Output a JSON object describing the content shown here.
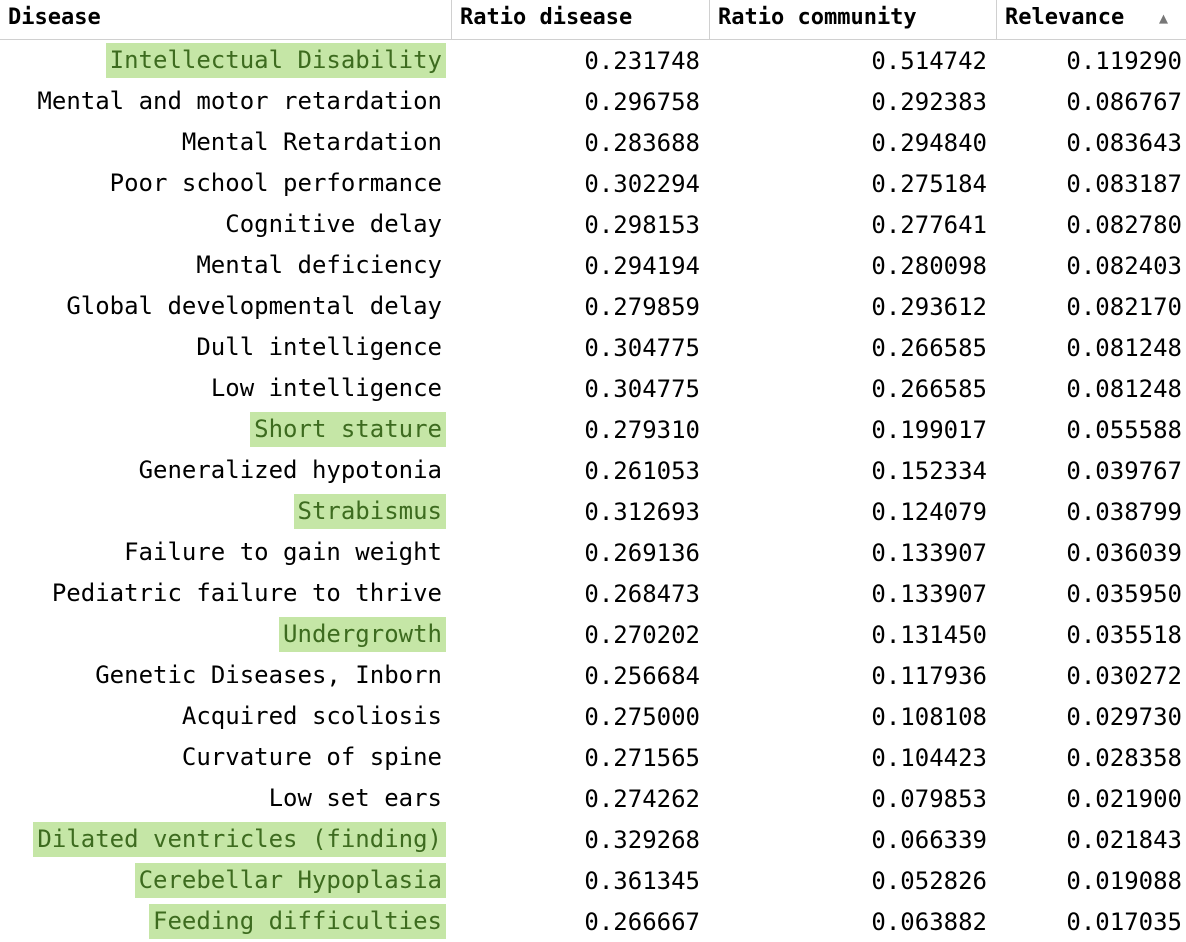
{
  "table": {
    "columns": [
      {
        "key": "disease",
        "label": "Disease",
        "sorted": false
      },
      {
        "key": "ratio_disease",
        "label": "Ratio disease",
        "sorted": false
      },
      {
        "key": "ratio_community",
        "label": "Ratio community",
        "sorted": false
      },
      {
        "key": "relevance",
        "label": "Relevance",
        "sorted": true,
        "sort_icon": "sort-ascending-icon"
      }
    ],
    "highlight_color": "#c5e6a6",
    "highlight_text_color": "#3d6b1f",
    "rows": [
      {
        "disease": "Intellectual Disability",
        "ratio_disease": "0.231748",
        "ratio_community": "0.514742",
        "relevance": "0.119290",
        "highlighted": true
      },
      {
        "disease": "Mental and motor retardation",
        "ratio_disease": "0.296758",
        "ratio_community": "0.292383",
        "relevance": "0.086767",
        "highlighted": false
      },
      {
        "disease": "Mental Retardation",
        "ratio_disease": "0.283688",
        "ratio_community": "0.294840",
        "relevance": "0.083643",
        "highlighted": false
      },
      {
        "disease": "Poor school performance",
        "ratio_disease": "0.302294",
        "ratio_community": "0.275184",
        "relevance": "0.083187",
        "highlighted": false
      },
      {
        "disease": "Cognitive delay",
        "ratio_disease": "0.298153",
        "ratio_community": "0.277641",
        "relevance": "0.082780",
        "highlighted": false
      },
      {
        "disease": "Mental deficiency",
        "ratio_disease": "0.294194",
        "ratio_community": "0.280098",
        "relevance": "0.082403",
        "highlighted": false
      },
      {
        "disease": "Global developmental delay",
        "ratio_disease": "0.279859",
        "ratio_community": "0.293612",
        "relevance": "0.082170",
        "highlighted": false
      },
      {
        "disease": "Dull intelligence",
        "ratio_disease": "0.304775",
        "ratio_community": "0.266585",
        "relevance": "0.081248",
        "highlighted": false
      },
      {
        "disease": "Low intelligence",
        "ratio_disease": "0.304775",
        "ratio_community": "0.266585",
        "relevance": "0.081248",
        "highlighted": false
      },
      {
        "disease": "Short stature",
        "ratio_disease": "0.279310",
        "ratio_community": "0.199017",
        "relevance": "0.055588",
        "highlighted": true
      },
      {
        "disease": "Generalized hypotonia",
        "ratio_disease": "0.261053",
        "ratio_community": "0.152334",
        "relevance": "0.039767",
        "highlighted": false
      },
      {
        "disease": "Strabismus",
        "ratio_disease": "0.312693",
        "ratio_community": "0.124079",
        "relevance": "0.038799",
        "highlighted": true
      },
      {
        "disease": "Failure to gain weight",
        "ratio_disease": "0.269136",
        "ratio_community": "0.133907",
        "relevance": "0.036039",
        "highlighted": false
      },
      {
        "disease": "Pediatric failure to thrive",
        "ratio_disease": "0.268473",
        "ratio_community": "0.133907",
        "relevance": "0.035950",
        "highlighted": false
      },
      {
        "disease": "Undergrowth",
        "ratio_disease": "0.270202",
        "ratio_community": "0.131450",
        "relevance": "0.035518",
        "highlighted": true
      },
      {
        "disease": "Genetic Diseases, Inborn",
        "ratio_disease": "0.256684",
        "ratio_community": "0.117936",
        "relevance": "0.030272",
        "highlighted": false
      },
      {
        "disease": "Acquired scoliosis",
        "ratio_disease": "0.275000",
        "ratio_community": "0.108108",
        "relevance": "0.029730",
        "highlighted": false
      },
      {
        "disease": "Curvature of spine",
        "ratio_disease": "0.271565",
        "ratio_community": "0.104423",
        "relevance": "0.028358",
        "highlighted": false
      },
      {
        "disease": "Low set ears",
        "ratio_disease": "0.274262",
        "ratio_community": "0.079853",
        "relevance": "0.021900",
        "highlighted": false
      },
      {
        "disease": "Dilated ventricles (finding)",
        "ratio_disease": "0.329268",
        "ratio_community": "0.066339",
        "relevance": "0.021843",
        "highlighted": true
      },
      {
        "disease": "Cerebellar Hypoplasia",
        "ratio_disease": "0.361345",
        "ratio_community": "0.052826",
        "relevance": "0.019088",
        "highlighted": true
      },
      {
        "disease": "Feeding difficulties",
        "ratio_disease": "0.266667",
        "ratio_community": "0.063882",
        "relevance": "0.017035",
        "highlighted": true
      }
    ]
  }
}
